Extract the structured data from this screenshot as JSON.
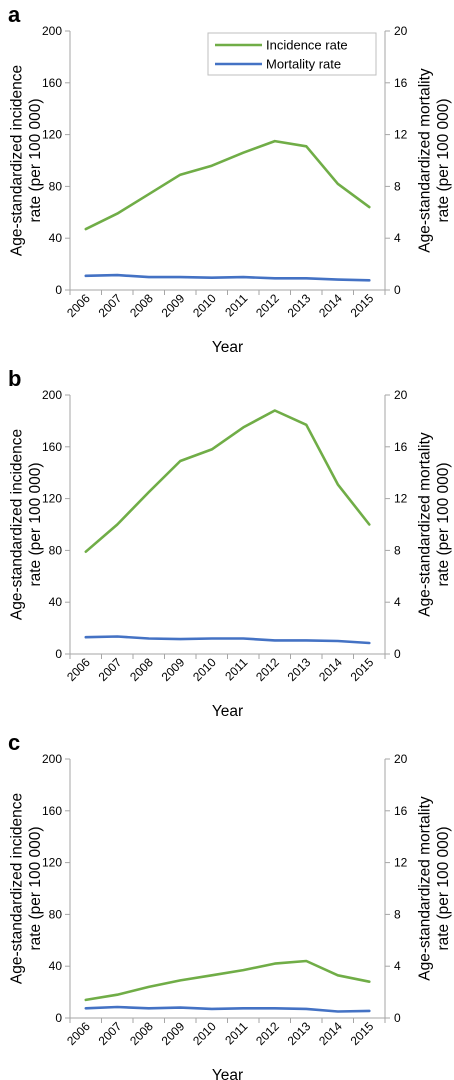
{
  "chart_data": [
    {
      "type": "line",
      "panel_label": "a",
      "categories": [
        "2006",
        "2007",
        "2008",
        "2009",
        "2010",
        "2011",
        "2012",
        "2013",
        "2014",
        "2015"
      ],
      "xlabel": "Year",
      "ylabel_left": "Age-standardized incidence rate (per 100 000)",
      "ylabel_right": "Age-standardized mortality rate (per 100 000)",
      "ylim_left": [
        0,
        200
      ],
      "ylim_right": [
        0,
        20
      ],
      "yticks_left": [
        0,
        40,
        80,
        120,
        160,
        200
      ],
      "yticks_right": [
        0,
        4,
        8,
        12,
        16,
        20
      ],
      "legend": true,
      "legend_position": "top-right",
      "series": [
        {
          "name": "Incidence rate",
          "axis": "left",
          "color": "#70ad47",
          "values": [
            47,
            59,
            74,
            89,
            96,
            106,
            115,
            111,
            82,
            64
          ]
        },
        {
          "name": "Mortality rate",
          "axis": "right",
          "color": "#4472c4",
          "values": [
            1.1,
            1.15,
            1.0,
            1.0,
            0.95,
            1.0,
            0.9,
            0.9,
            0.8,
            0.75
          ]
        }
      ]
    },
    {
      "type": "line",
      "panel_label": "b",
      "categories": [
        "2006",
        "2007",
        "2008",
        "2009",
        "2010",
        "2011",
        "2012",
        "2013",
        "2014",
        "2015"
      ],
      "xlabel": "Year",
      "ylabel_left": "Age-standardized incidence rate (per 100 000)",
      "ylabel_right": "Age-standardized mortality rate (per 100 000)",
      "ylim_left": [
        0,
        200
      ],
      "ylim_right": [
        0,
        20
      ],
      "yticks_left": [
        0,
        40,
        80,
        120,
        160,
        200
      ],
      "yticks_right": [
        0,
        4,
        8,
        12,
        16,
        20
      ],
      "legend": false,
      "series": [
        {
          "name": "Incidence rate",
          "axis": "left",
          "color": "#70ad47",
          "values": [
            79,
            100,
            125,
            149,
            158,
            175,
            188,
            177,
            131,
            100
          ]
        },
        {
          "name": "Mortality rate",
          "axis": "right",
          "color": "#4472c4",
          "values": [
            1.3,
            1.35,
            1.2,
            1.15,
            1.2,
            1.2,
            1.05,
            1.05,
            1.0,
            0.85
          ]
        }
      ]
    },
    {
      "type": "line",
      "panel_label": "c",
      "categories": [
        "2006",
        "2007",
        "2008",
        "2009",
        "2010",
        "2011",
        "2012",
        "2013",
        "2014",
        "2015"
      ],
      "xlabel": "Year",
      "ylabel_left": "Age-standardized incidence rate (per 100 000)",
      "ylabel_right": "Age-standardized mortality rate (per 100 000)",
      "ylim_left": [
        0,
        200
      ],
      "ylim_right": [
        0,
        20
      ],
      "yticks_left": [
        0,
        40,
        80,
        120,
        160,
        200
      ],
      "yticks_right": [
        0,
        4,
        8,
        12,
        16,
        20
      ],
      "legend": false,
      "series": [
        {
          "name": "Incidence rate",
          "axis": "left",
          "color": "#70ad47",
          "values": [
            14,
            18,
            24,
            29,
            33,
            37,
            42,
            44,
            33,
            28
          ]
        },
        {
          "name": "Mortality rate",
          "axis": "right",
          "color": "#4472c4",
          "values": [
            0.75,
            0.85,
            0.75,
            0.8,
            0.7,
            0.75,
            0.75,
            0.7,
            0.5,
            0.55
          ]
        }
      ]
    }
  ]
}
